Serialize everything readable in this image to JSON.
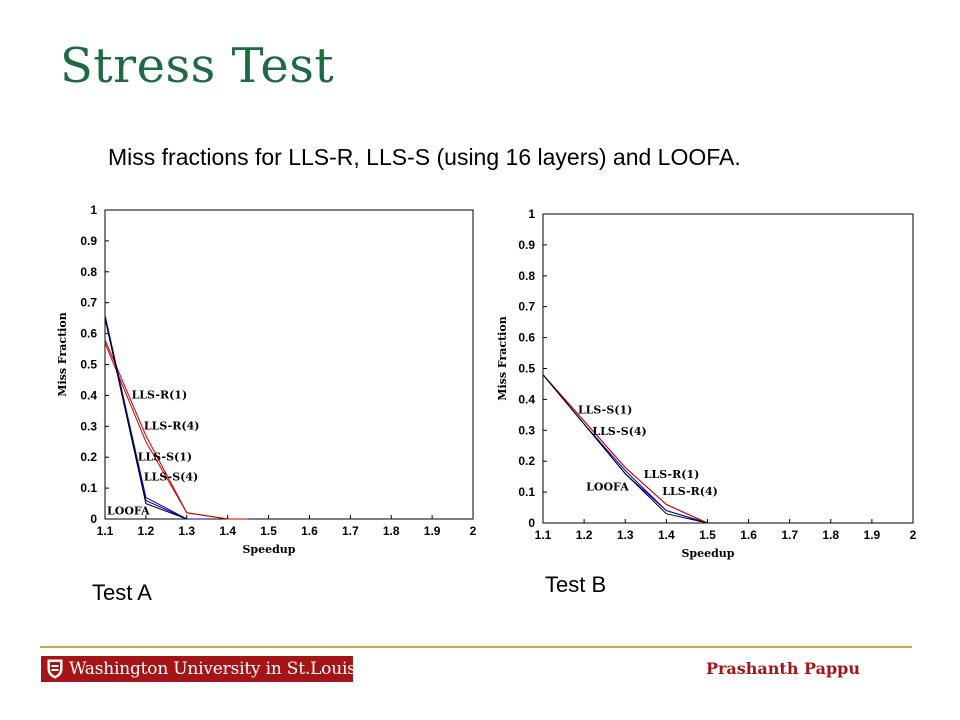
{
  "slide": {
    "title": "Stress Test",
    "subtitle": "Miss fractions for LLS-R, LLS-S (using 16 layers) and LOOFA.",
    "author": "Prashanth Pappu",
    "logo_text": "Washington University in St.Louis"
  },
  "colors": {
    "title": "#1e6a43",
    "footer_rule": "#c2aa4c",
    "logo_bg": "#a51417",
    "series_red": "#cc0000",
    "series_blue": "#0000cc",
    "series_black": "#000000"
  },
  "chart_data": [
    {
      "type": "line",
      "caption": "Test A",
      "xlabel": "Speedup",
      "ylabel": "Miss Fraction",
      "xlim": [
        1.1,
        2
      ],
      "ylim": [
        0,
        1
      ],
      "xticks": [
        "1.1",
        "1.2",
        "1.3",
        "1.4",
        "1.5",
        "1.6",
        "1.7",
        "1.8",
        "1.9",
        "2"
      ],
      "yticks": [
        "0",
        "0.1",
        "0.2",
        "0.3",
        "0.4",
        "0.5",
        "0.6",
        "0.7",
        "0.8",
        "0.9",
        "1"
      ],
      "series": [
        {
          "name": "LLS-R(1)",
          "color": "red",
          "x": [
            1.1,
            1.2,
            1.3,
            1.4,
            1.45
          ],
          "y": [
            0.58,
            0.27,
            0.02,
            0.0,
            0.0
          ]
        },
        {
          "name": "LLS-R(4)",
          "color": "red",
          "x": [
            1.1,
            1.2,
            1.3,
            1.4,
            1.45
          ],
          "y": [
            0.57,
            0.25,
            0.02,
            0.0,
            0.0
          ]
        },
        {
          "name": "LLS-S(1)",
          "color": "blue",
          "x": [
            1.1,
            1.2,
            1.3,
            1.35
          ],
          "y": [
            0.66,
            0.07,
            0.0,
            0.0
          ]
        },
        {
          "name": "LLS-S(4)",
          "color": "blue",
          "x": [
            1.1,
            1.2,
            1.3,
            1.35
          ],
          "y": [
            0.65,
            0.06,
            0.0,
            0.0
          ]
        },
        {
          "name": "LOOFA",
          "color": "black",
          "x": [
            1.1,
            1.2,
            1.3
          ],
          "y": [
            0.65,
            0.05,
            0.0
          ]
        }
      ],
      "labels": [
        {
          "text": "LLS-R(1)",
          "x": 1.165,
          "y": 0.39
        },
        {
          "text": "LLS-R(4)",
          "x": 1.195,
          "y": 0.29
        },
        {
          "text": "LLS-S(1)",
          "x": 1.18,
          "y": 0.19
        },
        {
          "text": "LLS-S(4)",
          "x": 1.195,
          "y": 0.125
        },
        {
          "text": "LOOFA",
          "x": 1.105,
          "y": 0.015
        }
      ]
    },
    {
      "type": "line",
      "caption": "Test B",
      "xlabel": "Speedup",
      "ylabel": "Miss Fraction",
      "xlim": [
        1.1,
        2
      ],
      "ylim": [
        0,
        1
      ],
      "xticks": [
        "1.1",
        "1.2",
        "1.3",
        "1.4",
        "1.5",
        "1.6",
        "1.7",
        "1.8",
        "1.9",
        "2"
      ],
      "yticks": [
        "0",
        "0.1",
        "0.2",
        "0.3",
        "0.4",
        "0.5",
        "0.6",
        "0.7",
        "0.8",
        "0.9",
        "1"
      ],
      "series": [
        {
          "name": "LLS-S(1)",
          "color": "blue",
          "x": [
            1.1,
            1.2,
            1.3,
            1.4,
            1.5
          ],
          "y": [
            0.48,
            0.32,
            0.17,
            0.04,
            0.0
          ]
        },
        {
          "name": "LLS-S(4)",
          "color": "blue",
          "x": [
            1.1,
            1.2,
            1.3,
            1.4,
            1.5
          ],
          "y": [
            0.48,
            0.32,
            0.16,
            0.04,
            0.0
          ]
        },
        {
          "name": "LLS-R(1)",
          "color": "red",
          "x": [
            1.1,
            1.2,
            1.3,
            1.4,
            1.5
          ],
          "y": [
            0.48,
            0.33,
            0.18,
            0.06,
            0.0
          ]
        },
        {
          "name": "LLS-R(4)",
          "color": "red",
          "x": [
            1.1,
            1.2,
            1.3,
            1.4,
            1.5
          ],
          "y": [
            0.48,
            0.33,
            0.18,
            0.06,
            0.0
          ]
        },
        {
          "name": "LOOFA",
          "color": "black",
          "x": [
            1.1,
            1.2,
            1.3,
            1.4,
            1.5
          ],
          "y": [
            0.48,
            0.32,
            0.16,
            0.03,
            0.0
          ]
        }
      ],
      "labels": [
        {
          "text": "LLS-S(1)",
          "x": 1.185,
          "y": 0.355
        },
        {
          "text": "LLS-S(4)",
          "x": 1.22,
          "y": 0.285
        },
        {
          "text": "LLS-R(1)",
          "x": 1.345,
          "y": 0.145
        },
        {
          "text": "LOOFA",
          "x": 1.205,
          "y": 0.105
        },
        {
          "text": "LLS-R(4)",
          "x": 1.39,
          "y": 0.09
        }
      ]
    }
  ]
}
